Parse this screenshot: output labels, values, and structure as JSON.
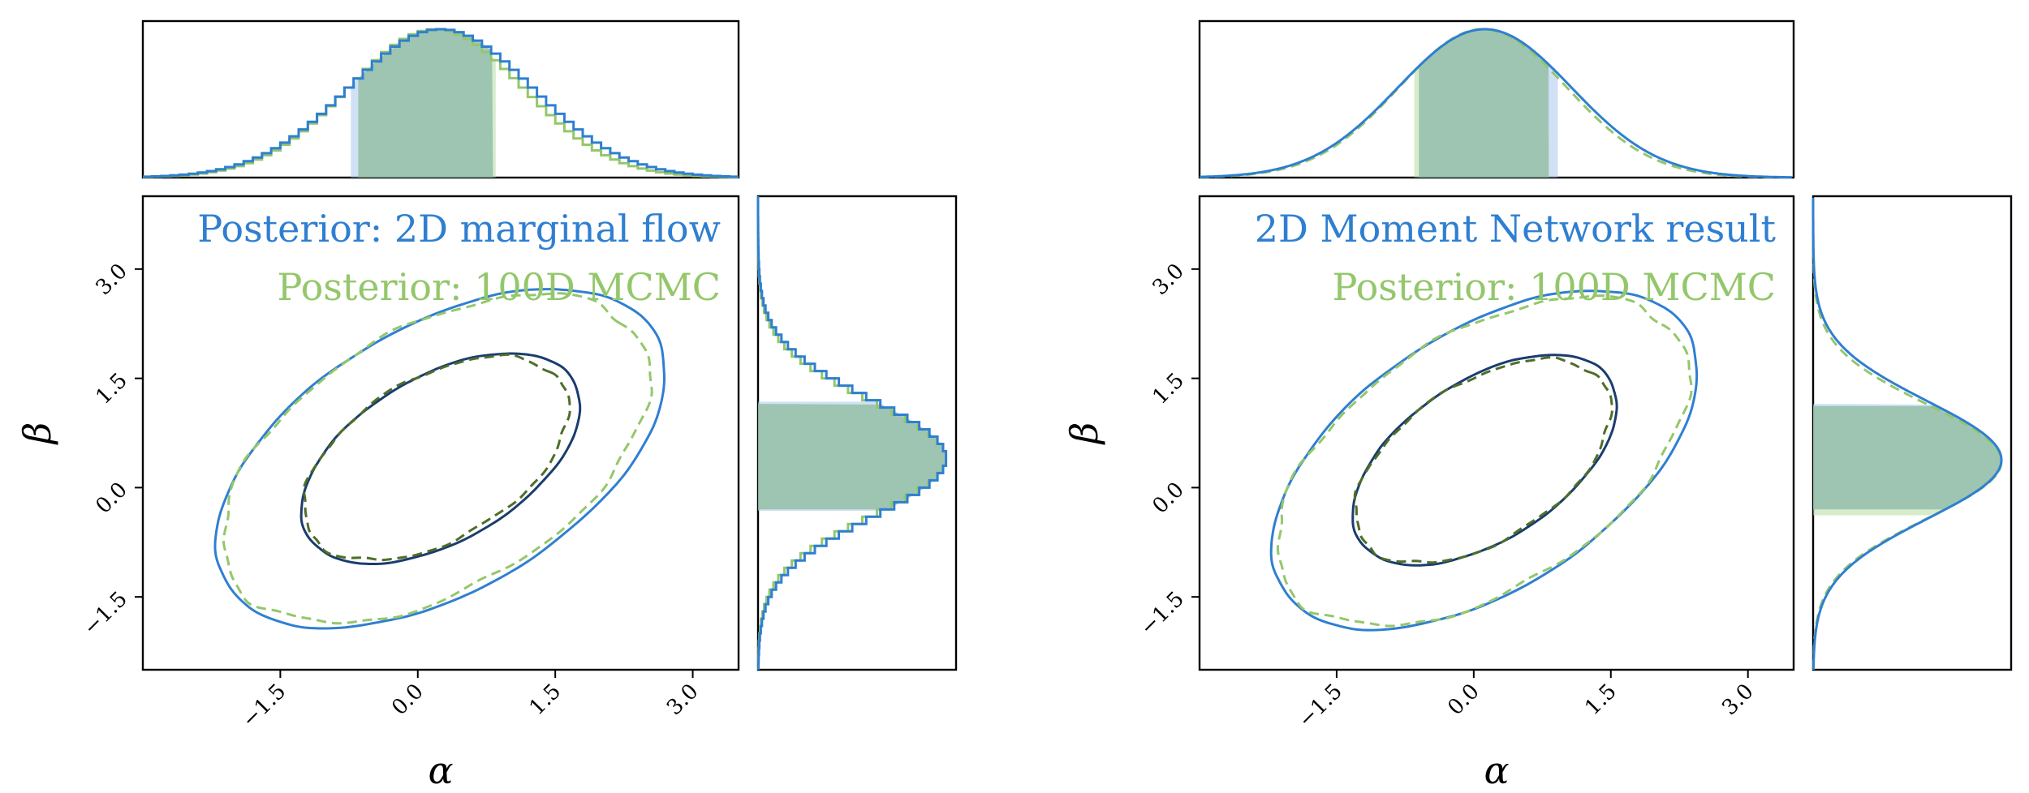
{
  "colors": {
    "flow": "#2f7fd1",
    "flow_dark": "#1a3d6e",
    "mcmc": "#94c76b",
    "mcmc_dark": "#4f6e2a",
    "flow_fill": "#a9c9ee",
    "mcmc_fill": "#b6dca0",
    "overlap_fill": "#7fb0a0"
  },
  "chart_data": [
    {
      "type": "contour",
      "panel": "left",
      "xlabel": "α",
      "ylabel": "β",
      "xlim": [
        -3.0,
        3.5
      ],
      "ylim": [
        -2.5,
        4.0
      ],
      "xticks": [
        -1.5,
        0.0,
        1.5,
        3.0
      ],
      "yticks": [
        -1.5,
        0.0,
        1.5,
        3.0
      ],
      "xtick_labels": [
        "−1.5",
        "0.0",
        "1.5",
        "3.0"
      ],
      "ytick_labels": [
        "−1.5",
        "0.0",
        "1.5",
        "3.0"
      ],
      "legend": [
        "Posterior: 2D marginal flow",
        "Posterior: 100D MCMC"
      ],
      "series": [
        {
          "name": "Posterior: 2D marginal flow",
          "style": "solid",
          "mean": [
            0.25,
            0.4
          ],
          "sd": [
            1.0,
            0.95
          ],
          "rho": 0.5
        },
        {
          "name": "Posterior: 100D MCMC",
          "style": "dashed",
          "mean": [
            0.2,
            0.4
          ],
          "sd": [
            0.95,
            0.92
          ],
          "rho": 0.48
        }
      ],
      "levels_sigma": [
        1,
        2
      ],
      "marginal_x": {
        "style": "step",
        "interval": [
          -0.73,
          0.82
        ],
        "mcmc_interval": [
          -0.65,
          0.85
        ]
      },
      "marginal_y": {
        "style": "step",
        "interval": [
          -0.32,
          1.18
        ],
        "mcmc_interval": [
          -0.3,
          1.15
        ]
      }
    },
    {
      "type": "contour",
      "panel": "right",
      "xlabel": "α",
      "ylabel": "β",
      "xlim": [
        -3.0,
        3.5
      ],
      "ylim": [
        -2.5,
        4.0
      ],
      "xticks": [
        -1.5,
        0.0,
        1.5,
        3.0
      ],
      "yticks": [
        -1.5,
        0.0,
        1.5,
        3.0
      ],
      "xtick_labels": [
        "−1.5",
        "0.0",
        "1.5",
        "3.0"
      ],
      "ytick_labels": [
        "−1.5",
        "0.0",
        "1.5",
        "3.0"
      ],
      "legend": [
        "2D Moment Network result",
        "Posterior: 100D MCMC"
      ],
      "series": [
        {
          "name": "2D Moment Network result",
          "style": "solid",
          "mean": [
            0.12,
            0.38
          ],
          "sd": [
            0.95,
            0.95
          ],
          "rho": 0.52
        },
        {
          "name": "Posterior: 100D MCMC",
          "style": "dashed",
          "mean": [
            0.1,
            0.36
          ],
          "sd": [
            0.92,
            0.92
          ],
          "rho": 0.5
        }
      ],
      "levels_sigma": [
        1,
        2
      ],
      "marginal_x": {
        "style": "smooth",
        "interval": [
          -0.6,
          0.92
        ],
        "mcmc_interval": [
          -0.65,
          0.82
        ]
      },
      "marginal_y": {
        "style": "smooth",
        "interval": [
          -0.3,
          1.15
        ],
        "mcmc_interval": [
          -0.38,
          1.12
        ]
      }
    }
  ]
}
